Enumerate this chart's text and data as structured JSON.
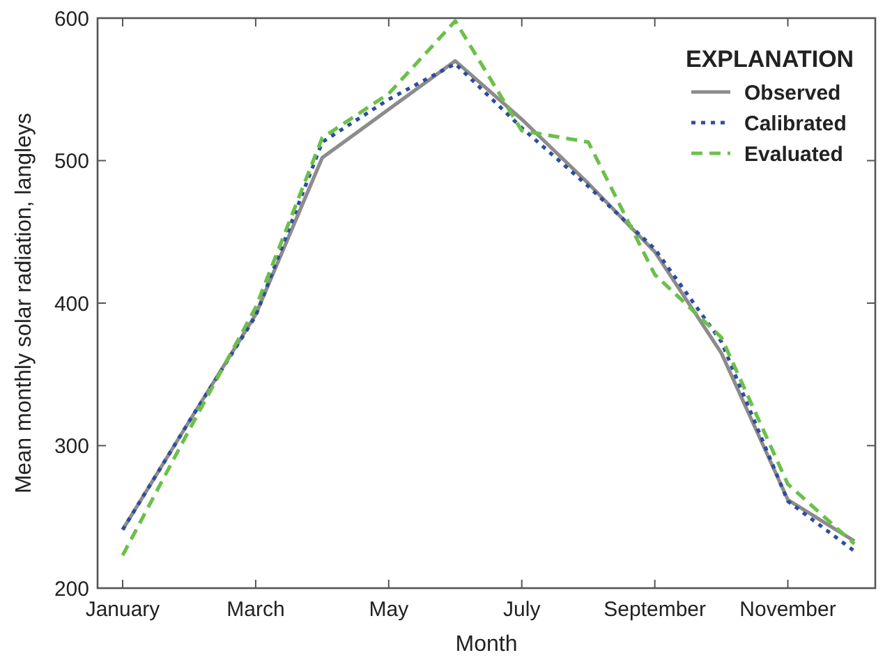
{
  "chart_data": {
    "type": "line",
    "xlabel": "Month",
    "ylabel": "Mean monthly solar radiation, langleys",
    "legend_title": "EXPLANATION",
    "legend": "top right",
    "grid": false,
    "categories": [
      "January",
      null,
      "March",
      null,
      "May",
      null,
      "July",
      null,
      "September",
      null,
      "November",
      null
    ],
    "ylim": [
      200,
      600
    ],
    "yticks": [
      200,
      300,
      400,
      500,
      600
    ],
    "series": [
      {
        "name": "Observed",
        "color": "#8c8c8c",
        "line_style": "solid",
        "values": [
          241,
          317,
          392,
          502,
          536,
          570,
          529,
          484,
          436,
          365,
          262,
          233
        ]
      },
      {
        "name": "Calibrated",
        "color": "#2e4da0",
        "line_style": "dotted",
        "values": [
          241,
          317,
          391,
          513,
          543,
          568,
          523,
          482,
          438,
          373,
          261,
          226
        ]
      },
      {
        "name": "Evaluated",
        "color": "#6cc04a",
        "line_style": "dashed",
        "values": [
          223,
          311,
          397,
          516,
          547,
          598,
          521,
          513,
          420,
          376,
          273,
          231
        ]
      }
    ]
  }
}
